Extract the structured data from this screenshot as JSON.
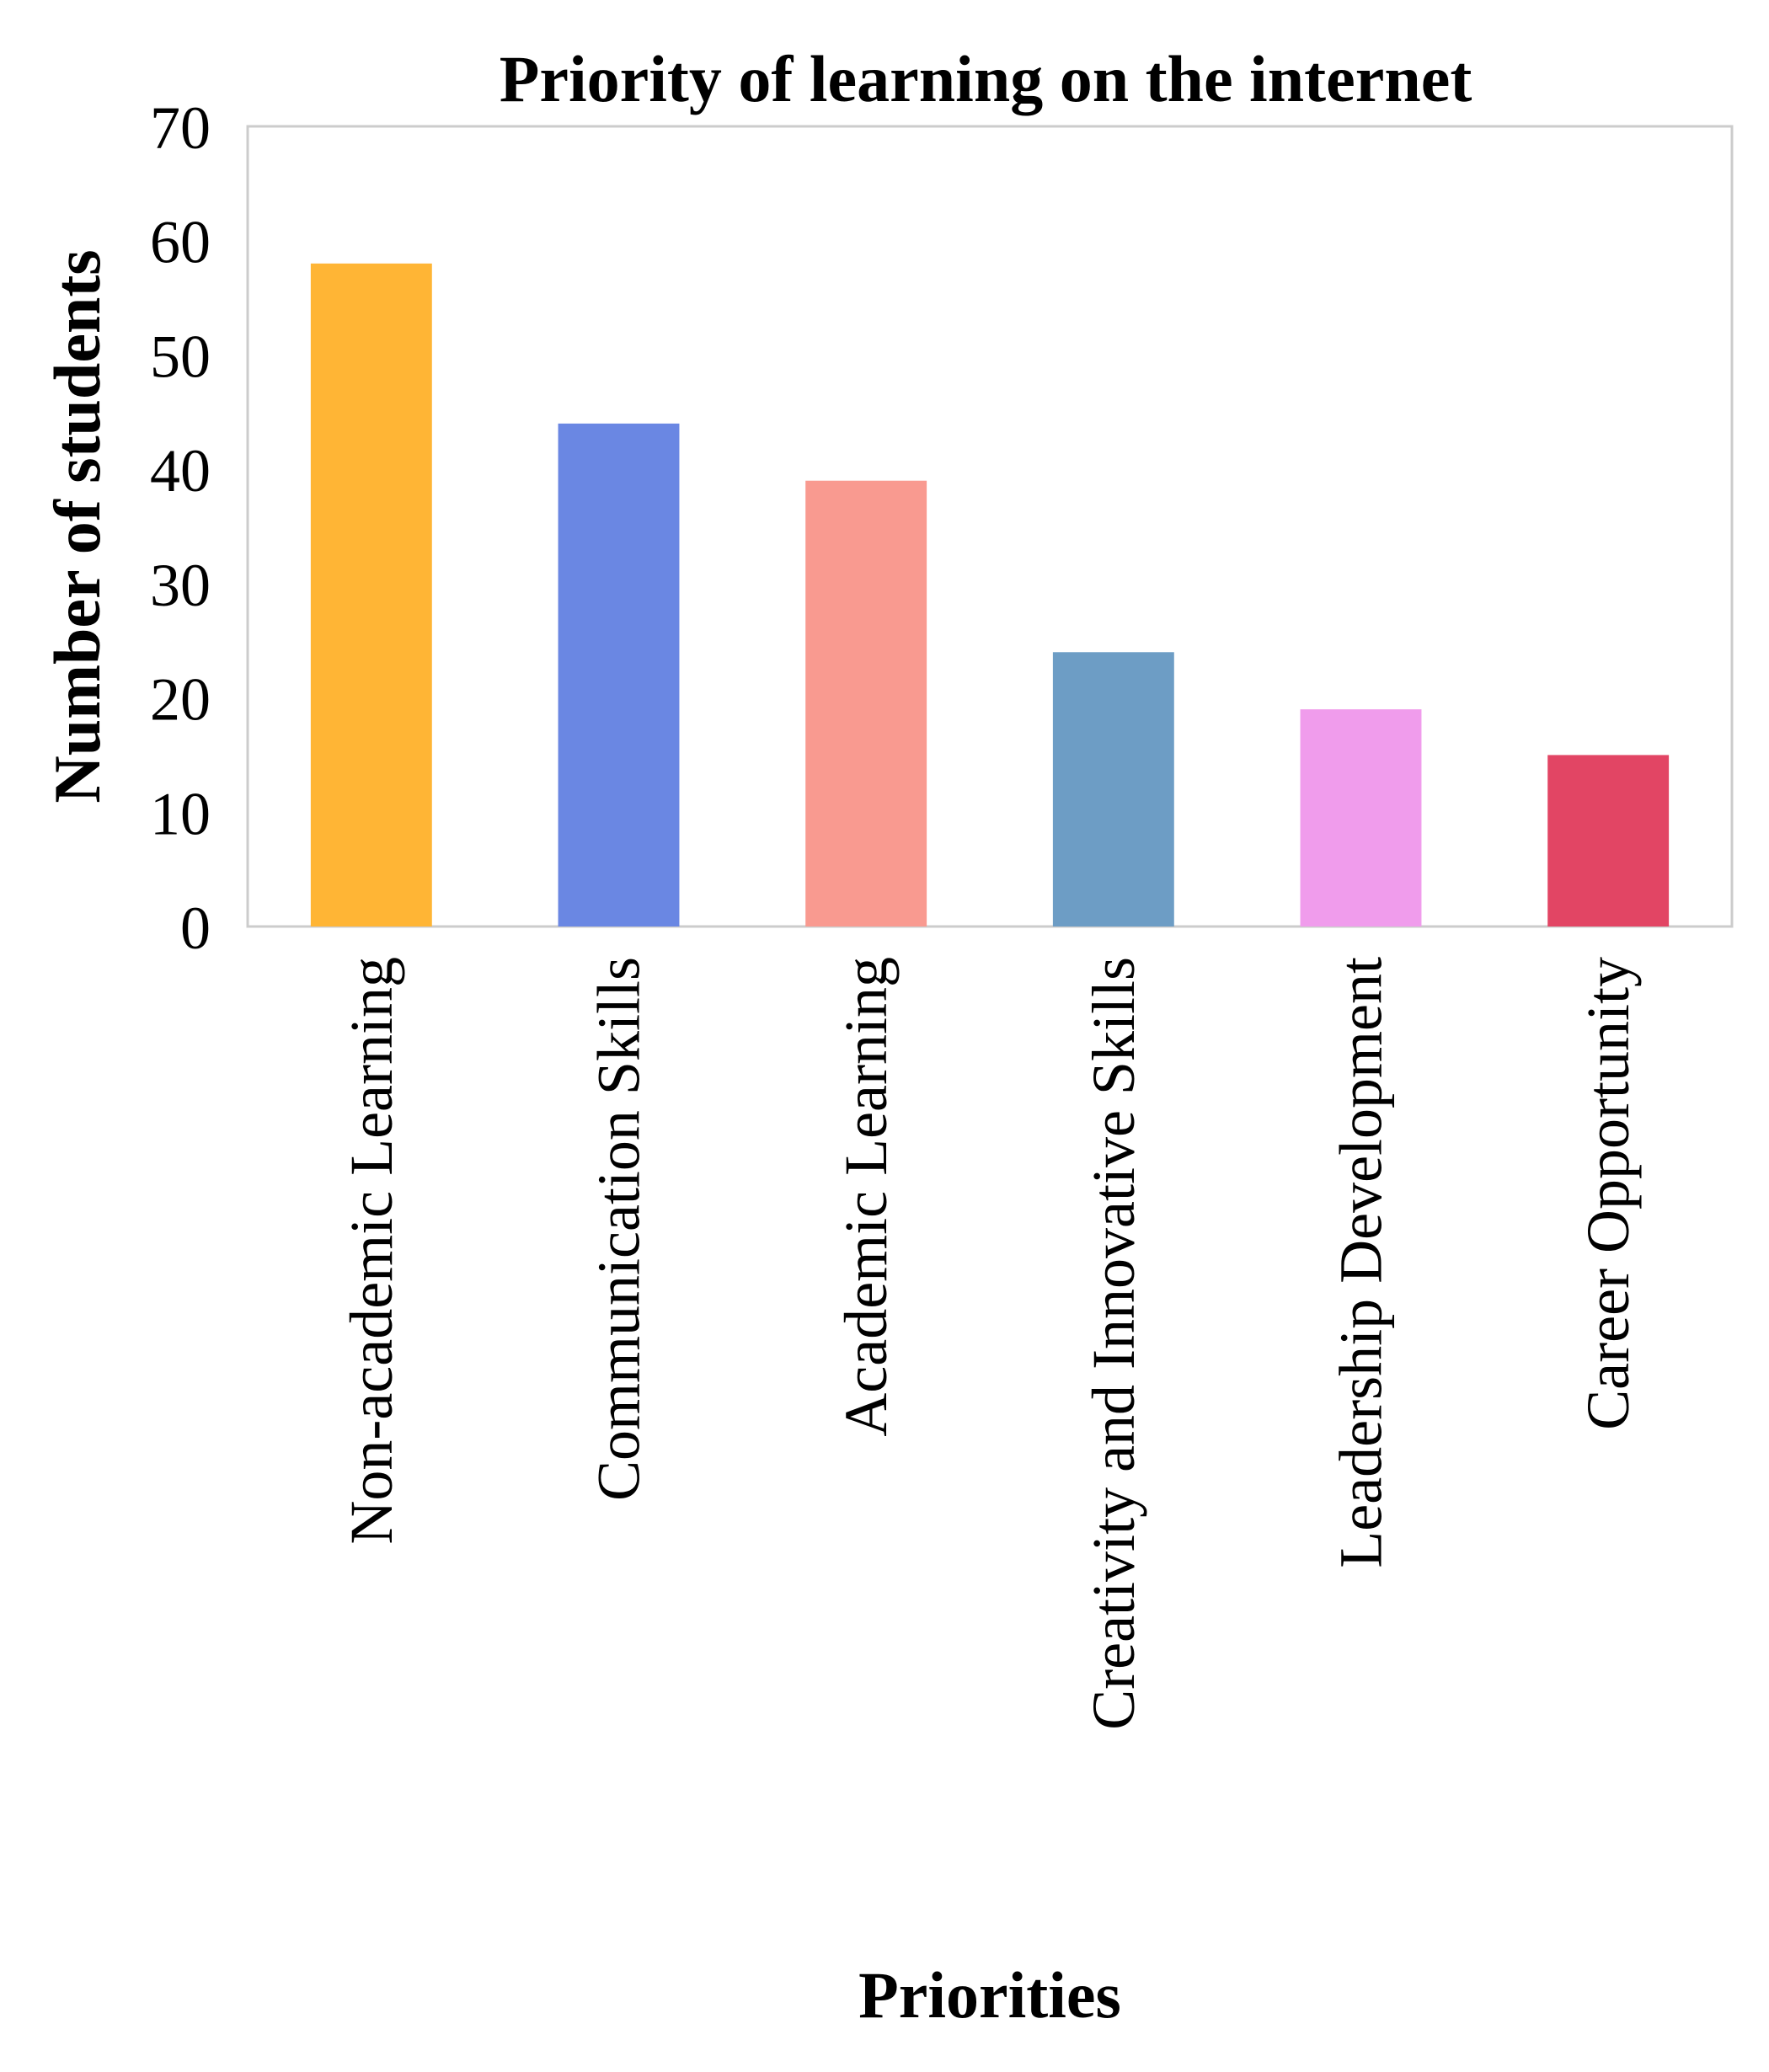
{
  "chart_data": {
    "type": "bar",
    "title": "Priority of learning on the internet",
    "xlabel": "Priorities",
    "ylabel": "Number of students",
    "categories": [
      "Non-academic Learning",
      "Communication Skills",
      "Academic Learning",
      "Creativity and Innovative Skills",
      "Leadership Development",
      "Career Opportunity"
    ],
    "values": [
      58,
      44,
      39,
      24,
      19,
      15
    ],
    "colors": [
      "#ffb535",
      "#6a87e3",
      "#f99a90",
      "#6d9dc5",
      "#f09cec",
      "#e24564"
    ],
    "ylim": [
      0,
      70
    ],
    "yticks": [
      0,
      10,
      20,
      30,
      40,
      50,
      60,
      70
    ],
    "grid": false,
    "legend": false
  }
}
